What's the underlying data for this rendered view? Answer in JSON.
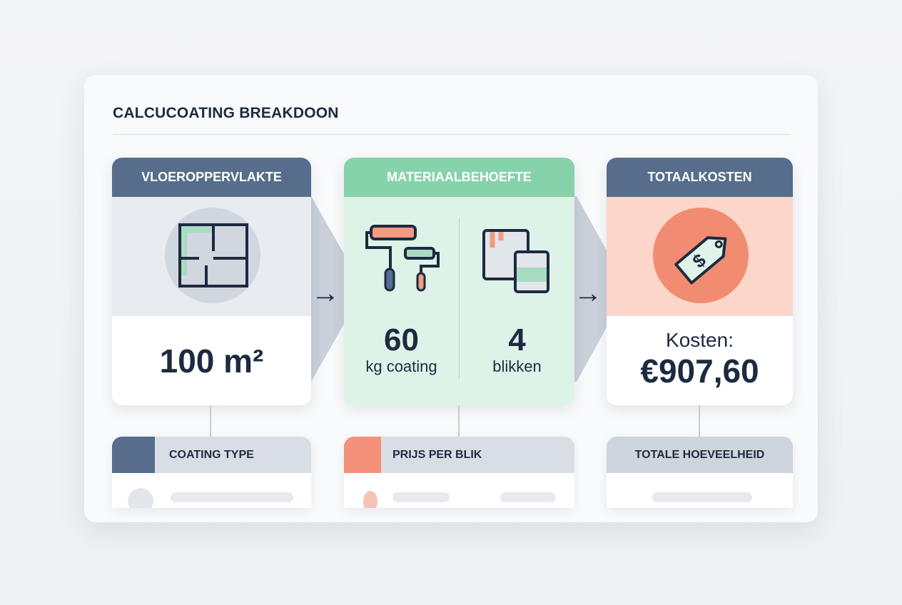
{
  "title": "CALCUCOATING BREAKDOON",
  "cards": [
    {
      "header": "VLOEROPPERVLAKTE",
      "value": "100 m²",
      "icon": "floor-plan-icon"
    },
    {
      "header": "MATERIAALBEHOEFTE",
      "left_value": "60",
      "left_label": "kg coating",
      "right_value": "4",
      "right_label": "blikken",
      "icons": [
        "paint-roller-icon",
        "paint-can-icon"
      ]
    },
    {
      "header": "TOTAALKOSTEN",
      "label": "Kosten:",
      "value": "€907,60",
      "icon": "price-tag-icon"
    }
  ],
  "details": [
    "COATING TYPE",
    "PRIJS PER BLIK",
    "TOTALE HOEVEELHEID"
  ],
  "colors": {
    "navy": "#566d8c",
    "green": "#86d2ab",
    "mint": "#def3e8",
    "coral": "#f18c72",
    "peach": "#fcd6ca",
    "text": "#1d2a40"
  }
}
